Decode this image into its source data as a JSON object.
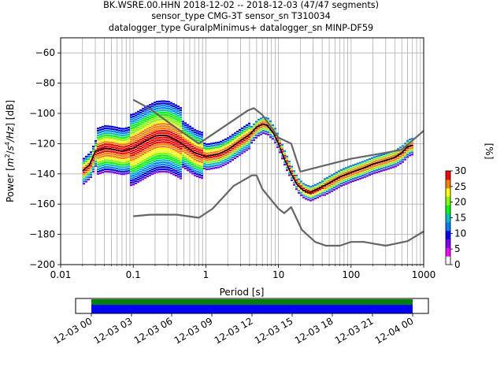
{
  "chart_data": [
    {
      "type": "line",
      "subtype": "probabilistic-power-spectral-density",
      "title_lines": [
        "BK.WSRE.00.HHN   2018-12-02 -- 2018-12-03  (47/47 segments)",
        "sensor_type CMG-3T sensor_sn T310034",
        "datalogger_type GuralpMinimus+ datalogger_sn MINP-DF59"
      ],
      "xlabel": "Period [s]",
      "ylabel_parts": [
        "Power [",
        "m",
        "2",
        "/",
        "s",
        "4",
        "/Hz",
        "] [dB]"
      ],
      "x_scale": "log",
      "xlim": [
        0.01,
        1000
      ],
      "ylim": [
        -200,
        -50
      ],
      "xticks": [
        {
          "value": 0.01,
          "label": "0.01"
        },
        {
          "value": 0.1,
          "label": "0.1"
        },
        {
          "value": 1,
          "label": "1"
        },
        {
          "value": 10,
          "label": "10"
        },
        {
          "value": 100,
          "label": "100"
        },
        {
          "value": 1000,
          "label": "1000"
        }
      ],
      "yticks": [
        {
          "value": -60,
          "label": "−60"
        },
        {
          "value": -80,
          "label": "−80"
        },
        {
          "value": -100,
          "label": "−100"
        },
        {
          "value": -120,
          "label": "−120"
        },
        {
          "value": -140,
          "label": "−140"
        },
        {
          "value": -160,
          "label": "−160"
        },
        {
          "value": -180,
          "label": "−180"
        },
        {
          "value": -200,
          "label": "−200"
        }
      ],
      "grid": true,
      "colors": {
        "noise_model": "#666666",
        "mean": "#000000",
        "grid": "#b0b0b0"
      },
      "series": [
        {
          "role": "new-high-noise-model",
          "points": [
            [
              0.1,
              -91
            ],
            [
              0.17,
              -97
            ],
            [
              0.4,
              -110
            ],
            [
              0.8,
              -120
            ],
            [
              3.8,
              -98
            ],
            [
              4.6,
              -96.5
            ],
            [
              6.0,
              -101
            ],
            [
              10,
              -116
            ],
            [
              15,
              -120
            ],
            [
              20,
              -138.5
            ],
            [
              100,
              -130
            ],
            [
              300,
              -126
            ],
            [
              500,
              -124
            ],
            [
              1000,
              -111.5
            ]
          ]
        },
        {
          "role": "new-low-noise-model",
          "points": [
            [
              0.1,
              -168
            ],
            [
              0.17,
              -167
            ],
            [
              0.4,
              -167
            ],
            [
              0.8,
              -169
            ],
            [
              1.24,
              -163
            ],
            [
              2.4,
              -148
            ],
            [
              4.3,
              -141
            ],
            [
              5.0,
              -141
            ],
            [
              6.0,
              -150
            ],
            [
              10,
              -163
            ],
            [
              12,
              -166
            ],
            [
              15,
              -162
            ],
            [
              21,
              -177
            ],
            [
              32,
              -185
            ],
            [
              45,
              -187.5
            ],
            [
              70,
              -187.5
            ],
            [
              100,
              -185
            ],
            [
              150,
              -185
            ],
            [
              300,
              -187.5
            ],
            [
              600,
              -184.5
            ],
            [
              1000,
              -178
            ]
          ]
        },
        {
          "role": "mean-psd",
          "points": [
            [
              0.02,
              -138
            ],
            [
              0.025,
              -134
            ],
            [
              0.03,
              -125
            ],
            [
              0.04,
              -123
            ],
            [
              0.05,
              -123.5
            ],
            [
              0.07,
              -125
            ],
            [
              0.1,
              -123
            ],
            [
              0.15,
              -118
            ],
            [
              0.2,
              -115
            ],
            [
              0.25,
              -114.5
            ],
            [
              0.3,
              -115
            ],
            [
              0.4,
              -118
            ],
            [
              0.5,
              -121
            ],
            [
              0.7,
              -126
            ],
            [
              1.0,
              -128.5
            ],
            [
              1.5,
              -127
            ],
            [
              2.0,
              -124
            ],
            [
              3.0,
              -118
            ],
            [
              4.0,
              -114
            ],
            [
              5.0,
              -109
            ],
            [
              6.0,
              -107
            ],
            [
              7.0,
              -108
            ],
            [
              8.5,
              -113
            ],
            [
              10,
              -120
            ],
            [
              12,
              -130
            ],
            [
              15,
              -140
            ],
            [
              18,
              -147
            ],
            [
              22,
              -151
            ],
            [
              27,
              -152.5
            ],
            [
              35,
              -150
            ],
            [
              50,
              -146
            ],
            [
              70,
              -142
            ],
            [
              100,
              -139
            ],
            [
              150,
              -136
            ],
            [
              200,
              -133.5
            ],
            [
              300,
              -131
            ],
            [
              400,
              -129
            ],
            [
              500,
              -126
            ],
            [
              600,
              -122
            ],
            [
              700,
              -121
            ]
          ]
        }
      ],
      "colorbar": {
        "label": "[%]",
        "range": [
          0,
          30
        ],
        "ticks": [
          "0",
          "5",
          "10",
          "15",
          "20",
          "25",
          "30"
        ],
        "colors": [
          "#ffffff",
          "#ff00ff",
          "#8000ff",
          "#0000ff",
          "#0080ff",
          "#00c0c0",
          "#00ff00",
          "#80ff00",
          "#ffff00",
          "#ff8000",
          "#ff0000"
        ]
      }
    },
    {
      "type": "timeline",
      "role": "data-coverage",
      "tick_labels": [
        "12-03 00",
        "12-03 03",
        "12-03 06",
        "12-03 09",
        "12-03 12",
        "12-03 15",
        "12-03 18",
        "12-03 21",
        "12-04 00"
      ],
      "coverage_fraction": [
        0,
        1
      ],
      "colors": {
        "top": "#008000",
        "bottom": "#0000ff"
      }
    }
  ]
}
